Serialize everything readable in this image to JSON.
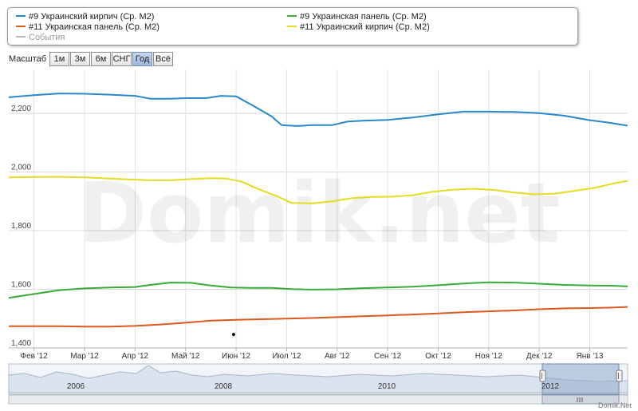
{
  "legend": {
    "items": [
      {
        "label": "#9 Украинский кирпич (Ср. М2)",
        "color": "#2a88c8"
      },
      {
        "label": "#9 Украинская панель (Ср. М2)",
        "color": "#3aaa3a"
      },
      {
        "label": "#11 Украинская панель (Ср. М2)",
        "color": "#e0571f"
      },
      {
        "label": "#11 Украинский кирпич (Ср. М2)",
        "color": "#e3dc22"
      },
      {
        "label": "События",
        "color": "#b8b8b8"
      }
    ]
  },
  "zoom": {
    "label": "Масштаб",
    "buttons": [
      "1м",
      "3м",
      "6м",
      "СНГ",
      "Год",
      "Всё"
    ],
    "active": "Год"
  },
  "watermark": "Domik.net",
  "brand": "Domik.Net",
  "chart_data": {
    "type": "line",
    "ylim": [
      1400,
      2350
    ],
    "yticks": [
      1400,
      1600,
      1800,
      2000,
      2200
    ],
    "ytick_labels": [
      "1,400",
      "1,600",
      "1,800",
      "2,000",
      "2,200"
    ],
    "xlim": [
      0,
      12.25
    ],
    "xticks": [
      0.5,
      1.5,
      2.5,
      3.5,
      4.5,
      5.5,
      6.5,
      7.5,
      8.5,
      9.5,
      10.5,
      11.5
    ],
    "xtick_labels": [
      "Фев '12",
      "Мар '12",
      "Апр '12",
      "Май '12",
      "Июн '12",
      "Июл '12",
      "Авг '12",
      "Сен '12",
      "Окт '12",
      "Ноя '12",
      "Дек '12",
      "Янв '13"
    ],
    "grid": true,
    "series": [
      {
        "name": "#9 Украинский кирпич (Ср. М2)",
        "color": "#2a88c8",
        "x": [
          0,
          0.5,
          1,
          1.5,
          2,
          2.5,
          2.8,
          3.2,
          3.5,
          3.9,
          4.2,
          4.5,
          4.8,
          5.2,
          5.4,
          5.7,
          6.0,
          6.4,
          6.7,
          7.0,
          7.5,
          8.0,
          8.5,
          9.0,
          9.5,
          10.0,
          10.5,
          11.0,
          11.5,
          11.9,
          12.25
        ],
        "y": [
          2255,
          2262,
          2268,
          2267,
          2264,
          2260,
          2250,
          2250,
          2252,
          2252,
          2260,
          2258,
          2230,
          2190,
          2160,
          2157,
          2160,
          2160,
          2172,
          2175,
          2178,
          2186,
          2197,
          2206,
          2206,
          2205,
          2201,
          2192,
          2177,
          2168,
          2158
        ]
      },
      {
        "name": "#11 Украинский кирпич (Ср. М2)",
        "color": "#e3dc22",
        "x": [
          0,
          0.5,
          1,
          1.5,
          2,
          2.5,
          2.8,
          3.2,
          3.6,
          4.0,
          4.3,
          4.6,
          4.9,
          5.3,
          5.6,
          6.0,
          6.4,
          6.8,
          7.2,
          7.6,
          8.0,
          8.4,
          8.8,
          9.2,
          9.6,
          10.0,
          10.4,
          10.8,
          11.2,
          11.6,
          12.0,
          12.25
        ],
        "y": [
          1982,
          1983,
          1984,
          1982,
          1978,
          1974,
          1972,
          1972,
          1976,
          1979,
          1978,
          1968,
          1945,
          1918,
          1895,
          1893,
          1900,
          1911,
          1915,
          1916,
          1921,
          1933,
          1940,
          1943,
          1939,
          1930,
          1924,
          1926,
          1936,
          1946,
          1962,
          1970
        ]
      },
      {
        "name": "#9 Украинская панель (Ср. М2)",
        "color": "#3aaa3a",
        "x": [
          0,
          0.5,
          1,
          1.5,
          2,
          2.5,
          2.8,
          3.2,
          3.6,
          4.0,
          4.4,
          4.8,
          5.2,
          5.6,
          6.0,
          6.5,
          7.0,
          7.5,
          8.0,
          8.5,
          9.0,
          9.5,
          10.0,
          10.5,
          11.0,
          11.5,
          12.0,
          12.25
        ],
        "y": [
          1571,
          1584,
          1597,
          1603,
          1606,
          1608,
          1615,
          1623,
          1622,
          1613,
          1606,
          1605,
          1605,
          1601,
          1599,
          1600,
          1604,
          1606,
          1609,
          1614,
          1620,
          1624,
          1623,
          1619,
          1615,
          1613,
          1612,
          1610
        ]
      },
      {
        "name": "#11 Украинская панель (Ср. М2)",
        "color": "#e0571f",
        "x": [
          0,
          0.5,
          1,
          1.5,
          2,
          2.5,
          3.0,
          3.5,
          4.0,
          4.5,
          5.0,
          5.5,
          6.0,
          6.5,
          7.0,
          7.5,
          8.0,
          8.5,
          9.0,
          9.5,
          10.0,
          10.5,
          11.0,
          11.5,
          12.0,
          12.25
        ],
        "y": [
          1474,
          1474,
          1474,
          1473,
          1473,
          1475,
          1480,
          1486,
          1493,
          1496,
          1498,
          1500,
          1502,
          1505,
          1508,
          1511,
          1514,
          1518,
          1522,
          1525,
          1528,
          1532,
          1535,
          1536,
          1538,
          1540
        ]
      }
    ],
    "events": [
      {
        "x": 4.45,
        "y": 1446
      }
    ]
  },
  "navigator": {
    "year_labels": [
      "2006",
      "2008",
      "2010",
      "2012"
    ]
  }
}
